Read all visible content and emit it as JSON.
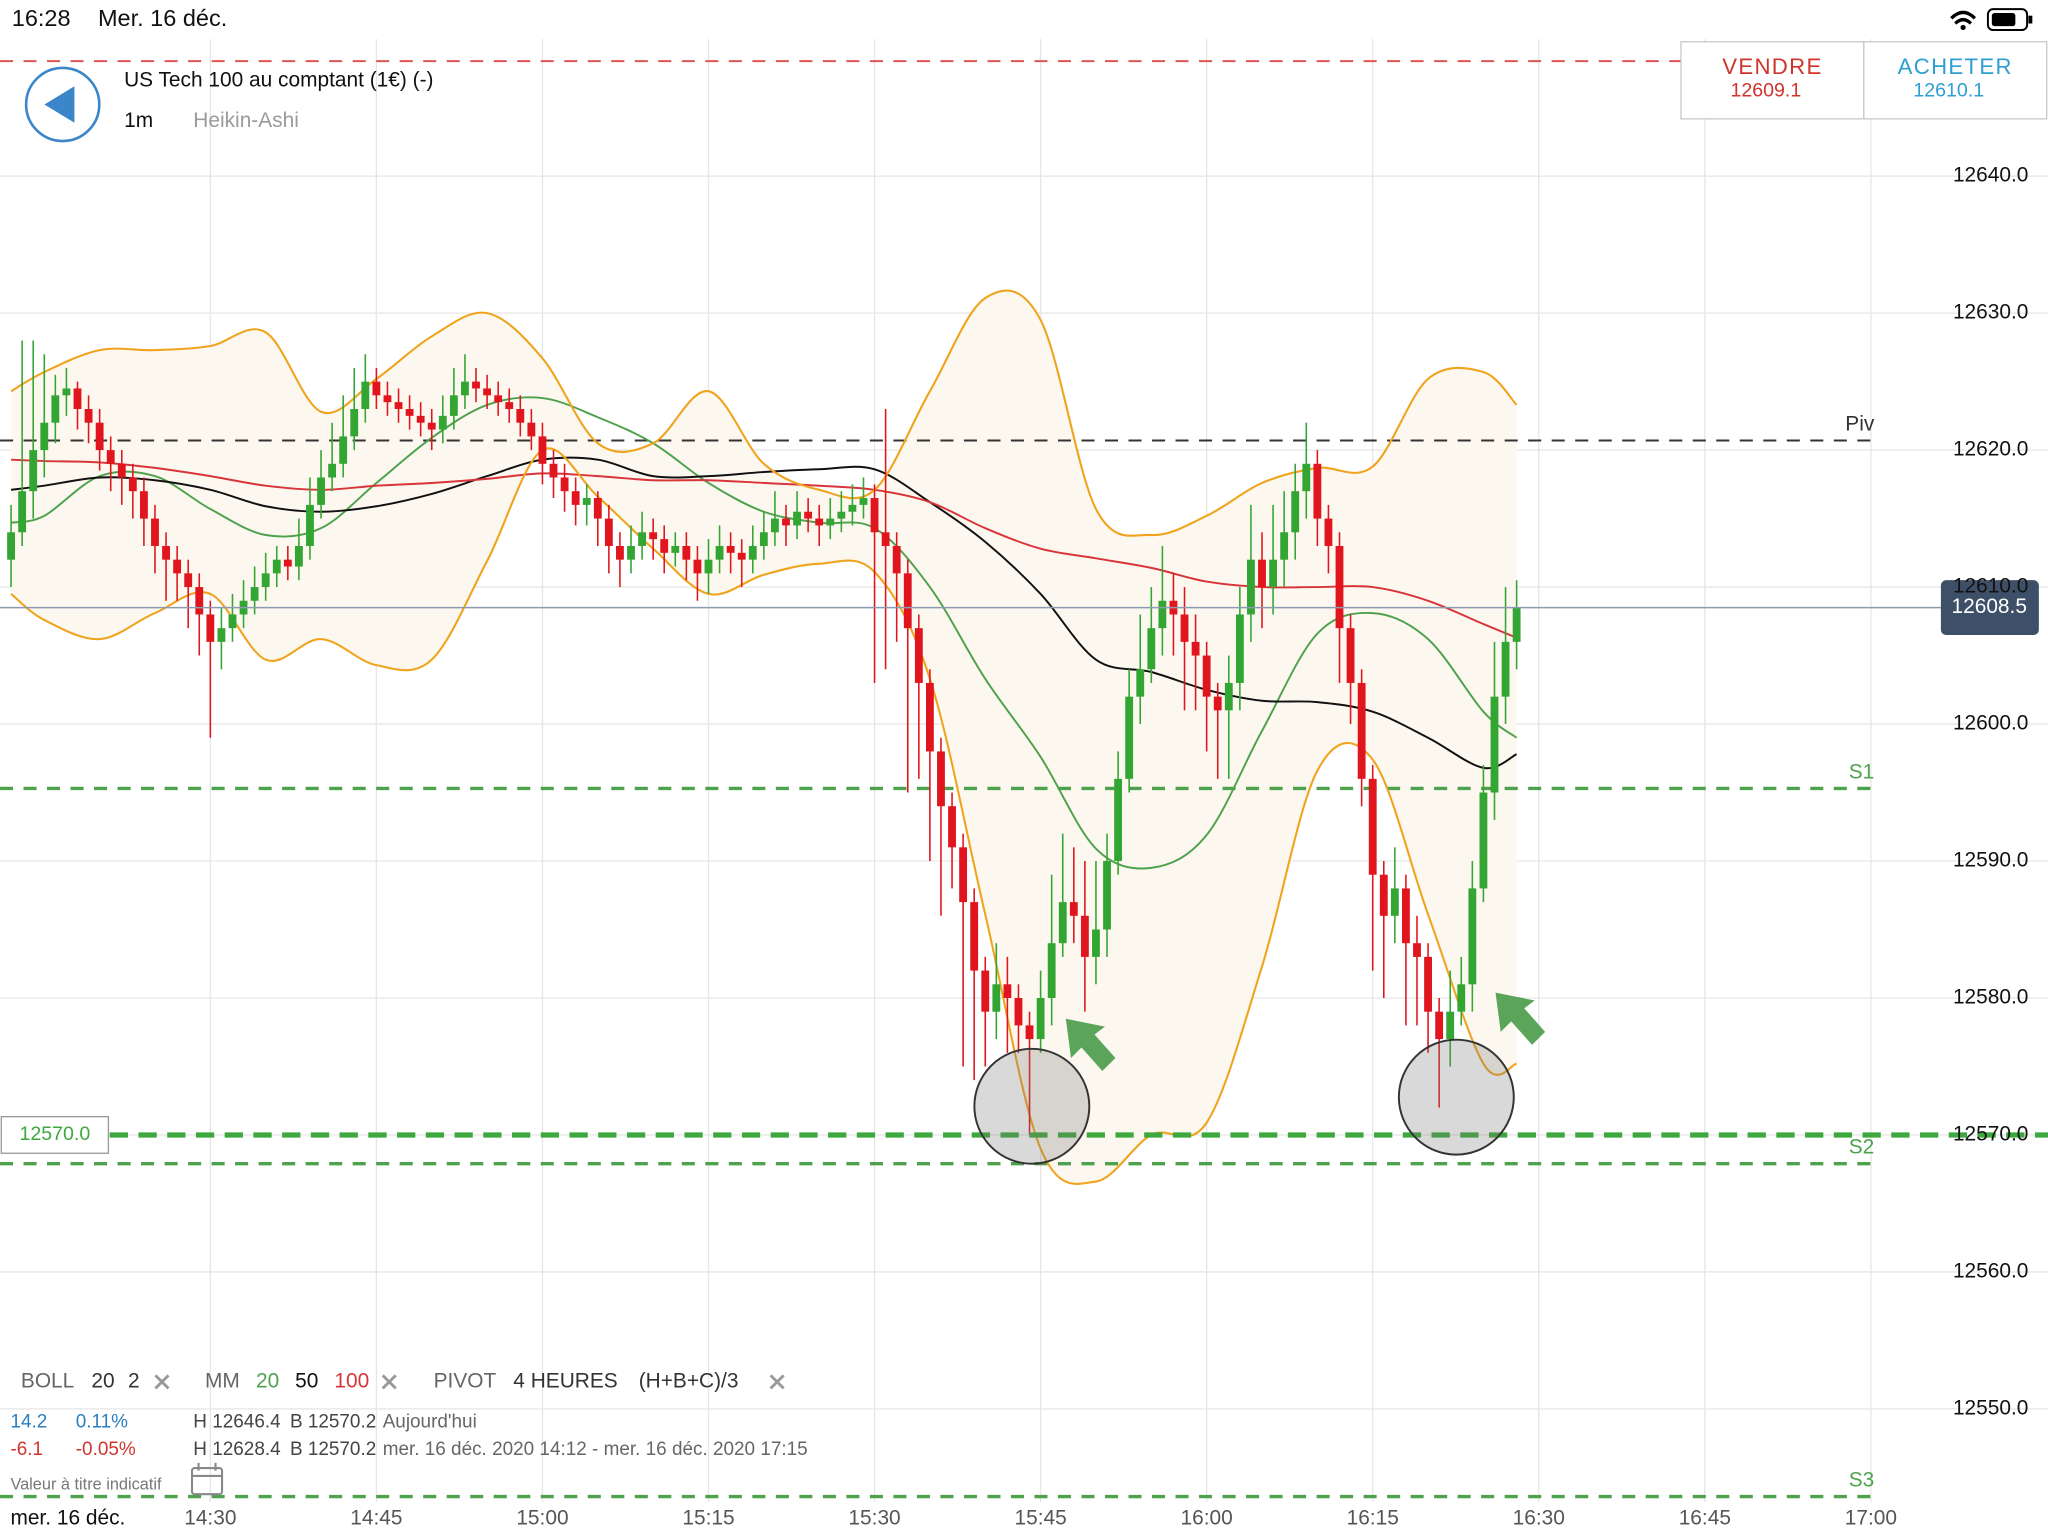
{
  "status_bar": {
    "time": "16:28",
    "date": "Mer. 16 déc."
  },
  "header": {
    "instrument": "US Tech 100 au comptant (1€) (-)",
    "interval": "1m",
    "chart_style": "Heikin-Ashi"
  },
  "quote": {
    "sell_label": "VENDRE",
    "sell_price": "12609.1",
    "buy_label": "ACHETER",
    "buy_price": "12610.1"
  },
  "chart_data": {
    "type": "candlestick",
    "xlim": [
      "14:11",
      "17:16"
    ],
    "xticks": [
      "14:30",
      "14:45",
      "15:00",
      "15:15",
      "15:30",
      "15:45",
      "16:00",
      "16:15",
      "16:30",
      "16:45",
      "17:00"
    ],
    "ylim": [
      12543.2,
      12650
    ],
    "yticks": [
      {
        "value": 12550,
        "label": "12550.0"
      },
      {
        "value": 12560,
        "label": "12560.0"
      },
      {
        "value": 12570,
        "label": "12570.0"
      },
      {
        "value": 12580,
        "label": "12580.0"
      },
      {
        "value": 12590,
        "label": "12590.0"
      },
      {
        "value": 12600,
        "label": "12600.0"
      },
      {
        "value": 12610,
        "label": "12610.0"
      },
      {
        "value": 12620,
        "label": "12620.0"
      },
      {
        "value": 12630,
        "label": "12630.0"
      },
      {
        "value": 12640,
        "label": "12640.0"
      }
    ],
    "grid": true,
    "up_color": "#33a532",
    "down_color": "#e0151d",
    "x": [
      "14:12",
      "14:13",
      "14:14",
      "14:15",
      "14:16",
      "14:17",
      "14:18",
      "14:19",
      "14:20",
      "14:21",
      "14:22",
      "14:23",
      "14:24",
      "14:25",
      "14:26",
      "14:27",
      "14:28",
      "14:29",
      "14:30",
      "14:31",
      "14:32",
      "14:33",
      "14:34",
      "14:35",
      "14:36",
      "14:37",
      "14:38",
      "14:39",
      "14:40",
      "14:41",
      "14:42",
      "14:43",
      "14:44",
      "14:45",
      "14:46",
      "14:47",
      "14:48",
      "14:49",
      "14:50",
      "14:51",
      "14:52",
      "14:53",
      "14:54",
      "14:55",
      "14:56",
      "14:57",
      "14:58",
      "14:59",
      "15:00",
      "15:01",
      "15:02",
      "15:03",
      "15:04",
      "15:05",
      "15:06",
      "15:07",
      "15:08",
      "15:09",
      "15:10",
      "15:11",
      "15:12",
      "15:13",
      "15:14",
      "15:15",
      "15:16",
      "15:17",
      "15:18",
      "15:19",
      "15:20",
      "15:21",
      "15:22",
      "15:23",
      "15:24",
      "15:25",
      "15:26",
      "15:27",
      "15:28",
      "15:29",
      "15:30",
      "15:31",
      "15:32",
      "15:33",
      "15:34",
      "15:35",
      "15:36",
      "15:37",
      "15:38",
      "15:39",
      "15:40",
      "15:41",
      "15:42",
      "15:43",
      "15:44",
      "15:45",
      "15:46",
      "15:47",
      "15:48",
      "15:49",
      "15:50",
      "15:51",
      "15:52",
      "15:53",
      "15:54",
      "15:55",
      "15:56",
      "15:57",
      "15:58",
      "15:59",
      "16:00",
      "16:01",
      "16:02",
      "16:03",
      "16:04",
      "16:05",
      "16:06",
      "16:07",
      "16:08",
      "16:09",
      "16:10",
      "16:11",
      "16:12",
      "16:13",
      "16:14",
      "16:15",
      "16:16",
      "16:17",
      "16:18",
      "16:19",
      "16:20",
      "16:21",
      "16:22",
      "16:23",
      "16:24",
      "16:25",
      "16:26",
      "16:27",
      "16:28"
    ],
    "open": [
      12612,
      12614,
      12617,
      12620,
      12622,
      12624,
      12624.5,
      12623,
      12622,
      12620,
      12619,
      12618,
      12617,
      12615,
      12613,
      12612,
      12611,
      12610,
      12608,
      12606,
      12607,
      12608,
      12609,
      12610,
      12611,
      12612,
      12611.5,
      12613,
      12616,
      12618,
      12619,
      12621,
      12623,
      12625,
      12624,
      12623.5,
      12623,
      12622.5,
      12622,
      12621.5,
      12622.5,
      12624,
      12625,
      12624.5,
      12624,
      12623.5,
      12623,
      12622,
      12621,
      12619,
      12618,
      12617,
      12616,
      12616.5,
      12615,
      12613,
      12612,
      12613,
      12614,
      12613.5,
      12612.5,
      12613,
      12612,
      12611,
      12612,
      12613,
      12612.5,
      12612,
      12613,
      12614,
      12615,
      12614.5,
      12615.5,
      12615,
      12614.5,
      12615,
      12615.5,
      12616,
      12616.5,
      12614,
      12613,
      12611,
      12607,
      12603,
      12598,
      12594,
      12591,
      12587,
      12582,
      12579,
      12581,
      12580,
      12578,
      12577,
      12580,
      12584,
      12587,
      12586,
      12583,
      12585,
      12590,
      12596,
      12602,
      12604,
      12607,
      12609,
      12608,
      12606,
      12605,
      12602,
      12601,
      12603,
      12608,
      12612,
      12610,
      12612,
      12614,
      12617,
      12619,
      12615,
      12613,
      12607,
      12603,
      12596,
      12589,
      12586,
      12588,
      12584,
      12583,
      12579,
      12577,
      12579,
      12581,
      12588,
      12595,
      12602,
      12606
    ],
    "high": [
      12616,
      12628,
      12628,
      12627,
      12625.5,
      12626,
      12625,
      12624,
      12623,
      12621,
      12620,
      12619,
      12618,
      12616,
      12614,
      12613,
      12612,
      12611,
      12609,
      12608.5,
      12609.5,
      12610.5,
      12611.5,
      12612.5,
      12613,
      12613,
      12615,
      12618,
      12620,
      12622,
      12624,
      12626,
      12627,
      12626,
      12625,
      12624.5,
      12624,
      12623.5,
      12623,
      12624,
      12626,
      12627,
      12626,
      12625.5,
      12625,
      12624.5,
      12624,
      12623,
      12622,
      12620,
      12619,
      12618,
      12617.5,
      12617,
      12616,
      12614,
      12614.5,
      12615.5,
      12615,
      12614.5,
      12614,
      12614,
      12613,
      12613.5,
      12614.5,
      12614,
      12613.5,
      12614.5,
      12615.5,
      12617,
      12616,
      12617,
      12616.5,
      12616,
      12616.5,
      12617,
      12617.5,
      12618,
      12617.5,
      12623,
      12614,
      12612,
      12608,
      12604,
      12599,
      12595,
      12592,
      12588,
      12583,
      12584,
      12583,
      12581,
      12579,
      12582,
      12589,
      12592,
      12591,
      12590,
      12590,
      12592,
      12598,
      12604,
      12608,
      12610,
      12613,
      12611,
      12610,
      12608,
      12606,
      12603,
      12605,
      12610,
      12616,
      12614,
      12616,
      12617,
      12619,
      12622,
      12620,
      12616,
      12614,
      12608,
      12604,
      12597,
      12590,
      12591,
      12589,
      12586,
      12584,
      12580,
      12582,
      12583,
      12590,
      12597,
      12606,
      12610,
      12610.5
    ],
    "low": [
      12610,
      12613,
      12615,
      12618,
      12620.5,
      12622.5,
      12621.5,
      12620.5,
      12618.5,
      12617,
      12616,
      12615,
      12613,
      12611,
      12609,
      12609,
      12607,
      12605,
      12599,
      12604,
      12606,
      12607,
      12608,
      12609,
      12610,
      12610.5,
      12610.5,
      12612,
      12615,
      12617,
      12618,
      12620,
      12622,
      12623,
      12622.5,
      12622,
      12621.5,
      12621,
      12620,
      12620.5,
      12621.5,
      12623,
      12623.5,
      12623,
      12622.5,
      12622,
      12621,
      12620,
      12617.5,
      12616.5,
      12615.5,
      12614.5,
      12614.5,
      12613,
      12611,
      12610,
      12611,
      12612,
      12612,
      12611,
      12611.5,
      12610.5,
      12609,
      12609.5,
      12611,
      12611,
      12610,
      12611,
      12612,
      12613,
      12613,
      12613.5,
      12614,
      12613,
      12613.5,
      12614,
      12614.5,
      12615,
      12603,
      12604,
      12606,
      12595,
      12596,
      12590,
      12586,
      12588,
      12575,
      12574,
      12575,
      12577,
      12576,
      12576,
      12570,
      12576,
      12578,
      12583,
      12584,
      12579,
      12581,
      12583,
      12589,
      12595,
      12600,
      12603,
      12605,
      12605,
      12601,
      12601,
      12598,
      12596,
      12596,
      12601,
      12606,
      12607,
      12608,
      12610,
      12612,
      12615,
      12613,
      12611,
      12603,
      12600,
      12594,
      12582,
      12580,
      12584,
      12578,
      12578,
      12576,
      12572,
      12575,
      12578,
      12579,
      12587,
      12593,
      12600,
      12604
    ],
    "close": [
      12614,
      12617,
      12620,
      12622,
      12624,
      12624.5,
      12623,
      12622,
      12620,
      12619,
      12618,
      12617,
      12615,
      12613,
      12612,
      12611,
      12610,
      12608,
      12606,
      12607,
      12608,
      12609,
      12610,
      12611,
      12612,
      12611.5,
      12613,
      12616,
      12618,
      12619,
      12621,
      12623,
      12625,
      12624,
      12623.5,
      12623,
      12622.5,
      12622,
      12621.5,
      12622.5,
      12624,
      12625,
      12624.5,
      12624,
      12623.5,
      12623,
      12622,
      12621,
      12619,
      12618,
      12617,
      12616,
      12616.5,
      12615,
      12613,
      12612,
      12613,
      12614,
      12613.5,
      12612.5,
      12613,
      12612,
      12611,
      12612,
      12613,
      12612.5,
      12612,
      12613,
      12614,
      12615,
      12614.5,
      12615.5,
      12615,
      12614.5,
      12615,
      12615.5,
      12616,
      12616.5,
      12614,
      12613,
      12611,
      12607,
      12603,
      12598,
      12594,
      12591,
      12587,
      12582,
      12579,
      12581,
      12580,
      12578,
      12577,
      12580,
      12584,
      12587,
      12586,
      12583,
      12585,
      12590,
      12596,
      12602,
      12604,
      12607,
      12609,
      12608,
      12606,
      12605,
      12602,
      12601,
      12603,
      12608,
      12612,
      12610,
      12612,
      12614,
      12617,
      12619,
      12615,
      12613,
      12607,
      12603,
      12596,
      12589,
      12586,
      12588,
      12584,
      12583,
      12579,
      12577,
      12579,
      12581,
      12588,
      12595,
      12602,
      12606,
      12608.5
    ],
    "indicator_x": [
      "14:12",
      "14:15",
      "14:20",
      "14:25",
      "14:30",
      "14:35",
      "14:40",
      "14:45",
      "14:50",
      "14:55",
      "15:00",
      "15:05",
      "15:10",
      "15:15",
      "15:20",
      "15:25",
      "15:30",
      "15:35",
      "15:40",
      "15:45",
      "15:50",
      "15:55",
      "16:00",
      "16:05",
      "16:10",
      "16:15",
      "16:20",
      "16:25",
      "16:28"
    ],
    "bollinger": {
      "name": "BOLL",
      "period": "20",
      "deviation": "2",
      "color": "#f0a41e",
      "fill": "#fdf8ef",
      "upper": [
        12624.3,
        12625.7,
        12627.3,
        12627.3,
        12627.6,
        12628.6,
        12622.8,
        12625.2,
        12628.3,
        12630,
        12626.7,
        12620.5,
        12620.5,
        12624.3,
        12619,
        12617.1,
        12617.1,
        12624.3,
        12631.1,
        12629.5,
        12615.7,
        12613.8,
        12615.2,
        12617.6,
        12618.7,
        12618.8,
        12625.2,
        12625.7,
        12623.3
      ],
      "lower": [
        12609.5,
        12607.6,
        12606.2,
        12608.1,
        12609.5,
        12604.7,
        12606.2,
        12604.3,
        12604.7,
        12611.9,
        12620,
        12616.6,
        12612.8,
        12609.5,
        12610.9,
        12611.7,
        12611.1,
        12603.3,
        12586.1,
        12569,
        12566.6,
        12570,
        12570.9,
        12582.3,
        12596.6,
        12597.4,
        12586.1,
        12575.2,
        12575.2
      ]
    },
    "moving_averages": {
      "name": "MM",
      "series": [
        {
          "name": "20",
          "color": "#4ea24e",
          "values": [
            12614.7,
            12615.2,
            12618.1,
            12618.1,
            12615.7,
            12613.8,
            12614.3,
            12617.6,
            12620.9,
            12623.3,
            12623.8,
            12622.4,
            12620.5,
            12617.6,
            12615.5,
            12614.7,
            12614.3,
            12610,
            12603.3,
            12597.6,
            12590.9,
            12589.5,
            12591.9,
            12599.5,
            12606.6,
            12608.1,
            12606.2,
            12600.9,
            12599
          ]
        },
        {
          "name": "50",
          "color": "#111111",
          "values": [
            12617.1,
            12617.4,
            12618,
            12617.8,
            12617.1,
            12615.9,
            12615.5,
            12615.9,
            12616.8,
            12618.1,
            12619.3,
            12619.3,
            12618.1,
            12618.1,
            12618.4,
            12618.6,
            12618.6,
            12616.2,
            12613.3,
            12609.5,
            12604.7,
            12603.8,
            12602.5,
            12601.7,
            12601.6,
            12600.9,
            12599,
            12596.8,
            12597.8
          ]
        },
        {
          "name": "100",
          "color": "#d8353a",
          "values": [
            12619.3,
            12619.2,
            12619.1,
            12618.7,
            12618.1,
            12617.4,
            12617.1,
            12617.4,
            12617.6,
            12617.9,
            12618.3,
            12618.1,
            12617.8,
            12617.8,
            12617.6,
            12617.4,
            12617.1,
            12616.2,
            12614.3,
            12612.8,
            12612.1,
            12611.4,
            12610.4,
            12610,
            12610,
            12610,
            12609,
            12607.3,
            12606.3
          ]
        }
      ]
    },
    "pivot": {
      "name": "PIVOT",
      "period": "4 HEURES",
      "formula": "(H+B+C)/3",
      "levels": [
        {
          "label": null,
          "value": 12648.4,
          "color": "#e05555"
        },
        {
          "label": "Piv",
          "value": 12620.7,
          "color": "#333333"
        },
        {
          "label": "S1",
          "value": 12595.3,
          "color": "#4ea24e"
        },
        {
          "label": "S2",
          "value": 12567.9,
          "color": "#4ea24e"
        },
        {
          "label": "S3",
          "value": 12543.6,
          "color": "#4ea24e"
        }
      ]
    },
    "alert_line": {
      "value": 12570,
      "label": "12570.0",
      "color": "#3da83d"
    },
    "current_price": {
      "value": 12608.5,
      "label": "12608.5",
      "color": "#3e5068"
    }
  },
  "stats": {
    "rows": [
      [
        "14.2",
        "0.11%",
        "H 12646.4",
        "B 12570.2",
        "Aujourd'hui"
      ],
      [
        "-6.1",
        "-0.05%",
        "H 12628.4",
        "B 12570.2",
        "mer. 16 déc. 2020 14:12 - mer. 16 déc. 2020 17:15"
      ]
    ]
  },
  "footer": {
    "note": "Valeur à titre indicatif",
    "date": "mer. 16 déc."
  }
}
